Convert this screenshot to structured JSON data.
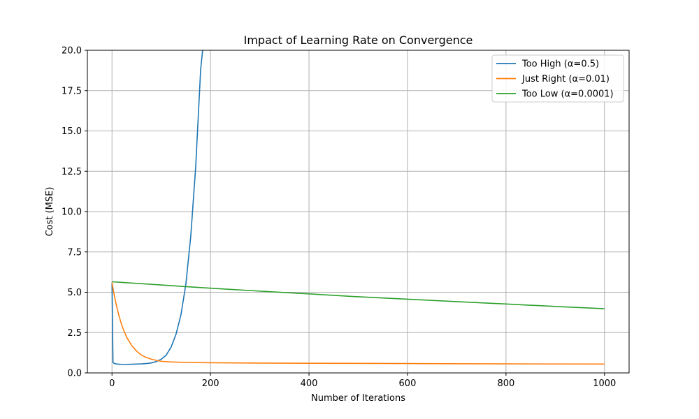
{
  "chart_data": {
    "type": "line",
    "title": "Impact of Learning Rate on Convergence",
    "xlabel": "Number of Iterations",
    "ylabel": "Cost (MSE)",
    "xlim": [
      -50,
      1050
    ],
    "ylim": [
      0,
      20
    ],
    "x_ticks": [
      0,
      200,
      400,
      600,
      800,
      1000
    ],
    "x_tick_labels": [
      "0",
      "200",
      "400",
      "600",
      "800",
      "1000"
    ],
    "y_ticks": [
      0,
      2.5,
      5,
      7.5,
      10,
      12.5,
      15,
      17.5,
      20
    ],
    "y_tick_labels": [
      "0.0",
      "2.5",
      "5.0",
      "7.5",
      "10.0",
      "12.5",
      "15.0",
      "17.5",
      "20.0"
    ],
    "grid": true,
    "legend_position": "top-right",
    "series": [
      {
        "name": "Too High (α=0.5)",
        "color": "#1f77b4",
        "x": [
          0,
          2,
          5,
          10,
          20,
          30,
          40,
          50,
          60,
          70,
          80,
          90,
          100,
          110,
          120,
          130,
          140,
          150,
          160,
          170,
          180,
          184
        ],
        "y": [
          5.6,
          0.65,
          0.58,
          0.55,
          0.53,
          0.53,
          0.54,
          0.55,
          0.56,
          0.58,
          0.62,
          0.7,
          0.85,
          1.1,
          1.6,
          2.4,
          3.6,
          5.5,
          8.5,
          12.8,
          18.8,
          20.0
        ]
      },
      {
        "name": "Just Right (α=0.01)",
        "color": "#ff7f0e",
        "x": [
          0,
          5,
          10,
          15,
          20,
          25,
          30,
          40,
          50,
          60,
          70,
          80,
          90,
          100,
          120,
          150,
          200,
          300,
          400,
          600,
          800,
          1000
        ],
        "y": [
          5.6,
          4.75,
          4.05,
          3.45,
          2.95,
          2.55,
          2.2,
          1.7,
          1.35,
          1.1,
          0.95,
          0.85,
          0.78,
          0.72,
          0.68,
          0.65,
          0.63,
          0.61,
          0.6,
          0.58,
          0.56,
          0.55
        ]
      },
      {
        "name": "Too Low (α=0.0001)",
        "color": "#2ca02c",
        "x": [
          0,
          100,
          200,
          300,
          400,
          500,
          600,
          700,
          800,
          900,
          1000
        ],
        "y": [
          5.65,
          5.45,
          5.25,
          5.07,
          4.9,
          4.72,
          4.57,
          4.42,
          4.27,
          4.12,
          3.98
        ]
      }
    ]
  }
}
